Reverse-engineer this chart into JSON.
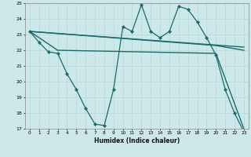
{
  "xlabel": "Humidex (Indice chaleur)",
  "ylabel": "",
  "bg_color": "#cce8e8",
  "grid_color": "#b8d8d8",
  "line_color": "#1a6b6b",
  "xlim": [
    -0.5,
    23.5
  ],
  "ylim": [
    17,
    25
  ],
  "xticks": [
    0,
    1,
    2,
    3,
    4,
    5,
    6,
    7,
    8,
    9,
    10,
    11,
    12,
    13,
    14,
    15,
    16,
    17,
    18,
    19,
    20,
    21,
    22,
    23
  ],
  "yticks": [
    17,
    18,
    19,
    20,
    21,
    22,
    23,
    24,
    25
  ],
  "series": [
    {
      "x": [
        0,
        1,
        2,
        3,
        4,
        5,
        6,
        7,
        8,
        9,
        10,
        11,
        12,
        13,
        14,
        15,
        16,
        17,
        18,
        19,
        20,
        21,
        22,
        23
      ],
      "y": [
        23.2,
        22.5,
        21.9,
        21.8,
        20.5,
        19.5,
        18.3,
        17.3,
        17.2,
        19.5,
        23.5,
        23.2,
        24.9,
        23.2,
        22.8,
        23.2,
        24.8,
        24.6,
        23.8,
        22.8,
        21.7,
        19.5,
        18.0,
        16.8
      ],
      "marker": "D",
      "markersize": 2.2,
      "linewidth": 0.9
    },
    {
      "x": [
        0,
        23
      ],
      "y": [
        23.2,
        22.2
      ],
      "marker": null,
      "linewidth": 1.0
    },
    {
      "x": [
        0,
        20,
        23
      ],
      "y": [
        23.2,
        22.3,
        22.0
      ],
      "marker": null,
      "linewidth": 1.0
    },
    {
      "x": [
        0,
        3,
        20,
        23
      ],
      "y": [
        23.2,
        22.0,
        21.8,
        17.0
      ],
      "marker": null,
      "linewidth": 1.0
    }
  ]
}
